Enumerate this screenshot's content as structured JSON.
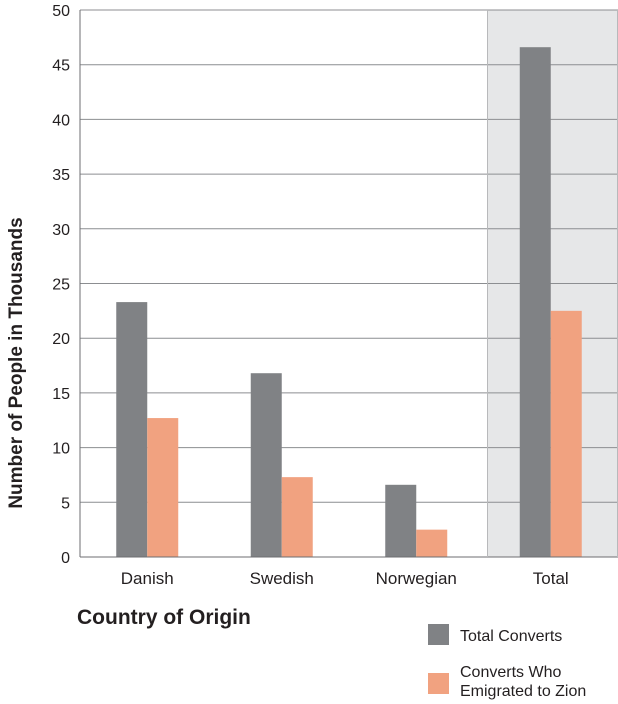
{
  "chart_data": {
    "type": "bar",
    "title": "",
    "xlabel": "Country of Origin",
    "ylabel": "Number of People in Thousands",
    "categories": [
      "Danish",
      "Swedish",
      "Norwegian",
      "Total"
    ],
    "highlighted_category": "Total",
    "highlight_color": "#e6e7e8",
    "ylim": [
      0,
      50
    ],
    "yticks": [
      0,
      5,
      10,
      15,
      20,
      25,
      30,
      35,
      40,
      45,
      50
    ],
    "grid": true,
    "legend_position": "bottom-right",
    "series": [
      {
        "name": "Total Converts",
        "color": "#808285",
        "values": [
          23.3,
          16.8,
          6.6,
          46.6
        ]
      },
      {
        "name": "Converts Who Emigrated to Zion",
        "legend_lines": [
          "Converts Who",
          "Emigrated to Zion"
        ],
        "color": "#f1a280",
        "values": [
          12.7,
          7.3,
          2.5,
          22.5
        ]
      }
    ]
  }
}
